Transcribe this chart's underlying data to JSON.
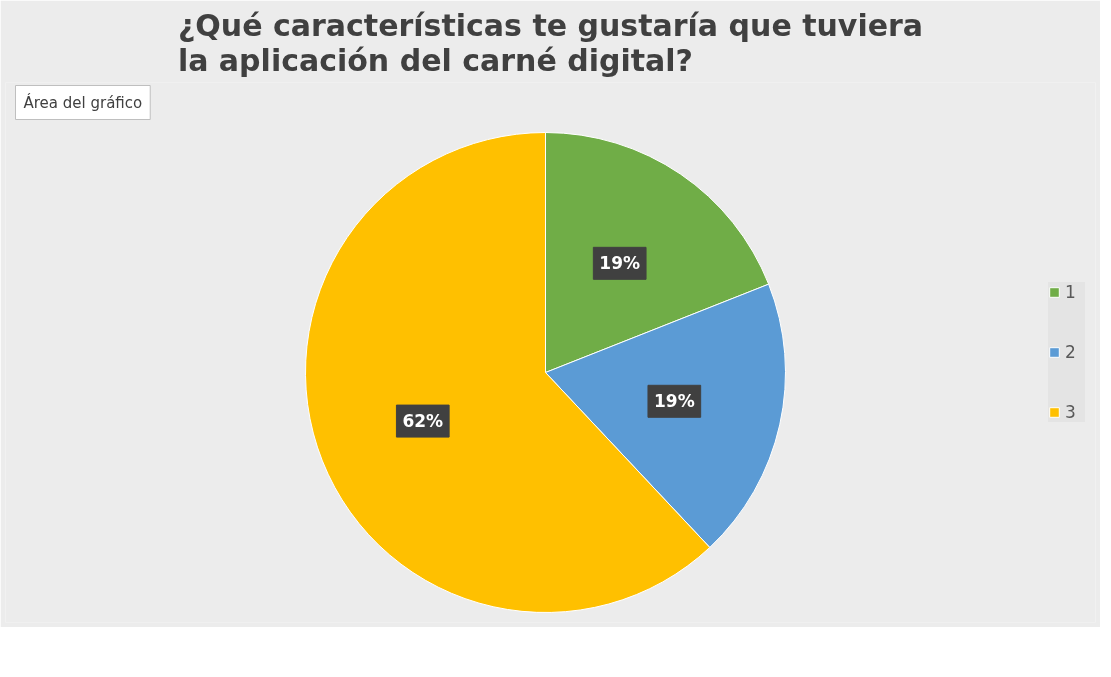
{
  "chart_data": {
    "type": "pie",
    "title": "¿Qué características te gustaría que tuviera\nla aplicación del carné digital?",
    "categories": [
      "1",
      "2",
      "3"
    ],
    "values": [
      19,
      19,
      62
    ],
    "colors": [
      "#70ad47",
      "#5b9bd5",
      "#ffc000"
    ],
    "value_labels": [
      "19%",
      "19%",
      "62%"
    ],
    "legend": "right",
    "annotations": [
      "Área del gráfico"
    ]
  }
}
